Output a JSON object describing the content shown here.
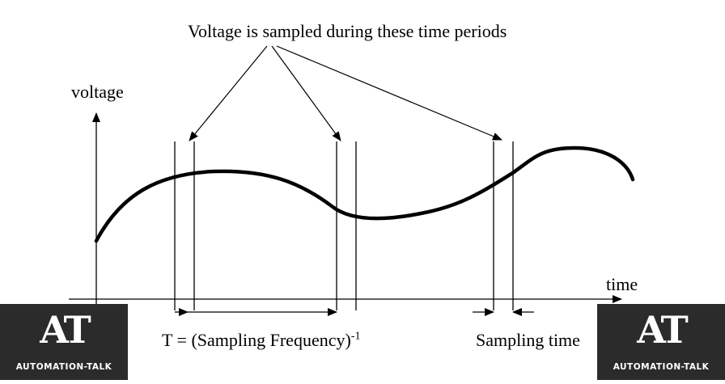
{
  "annotation": "Voltage is sampled during these time periods",
  "axis": {
    "y_label": "voltage",
    "x_label": "time"
  },
  "period_label": {
    "text": "T = (Sampling Frequency)",
    "exponent": "-1"
  },
  "sampling_time_label": "Sampling time",
  "logo": {
    "mark": "AT",
    "name": "AUTOMATION-TALK",
    "background": "#2b2b2b"
  },
  "colors": {
    "ink": "#000000",
    "background": "#ffffff"
  }
}
